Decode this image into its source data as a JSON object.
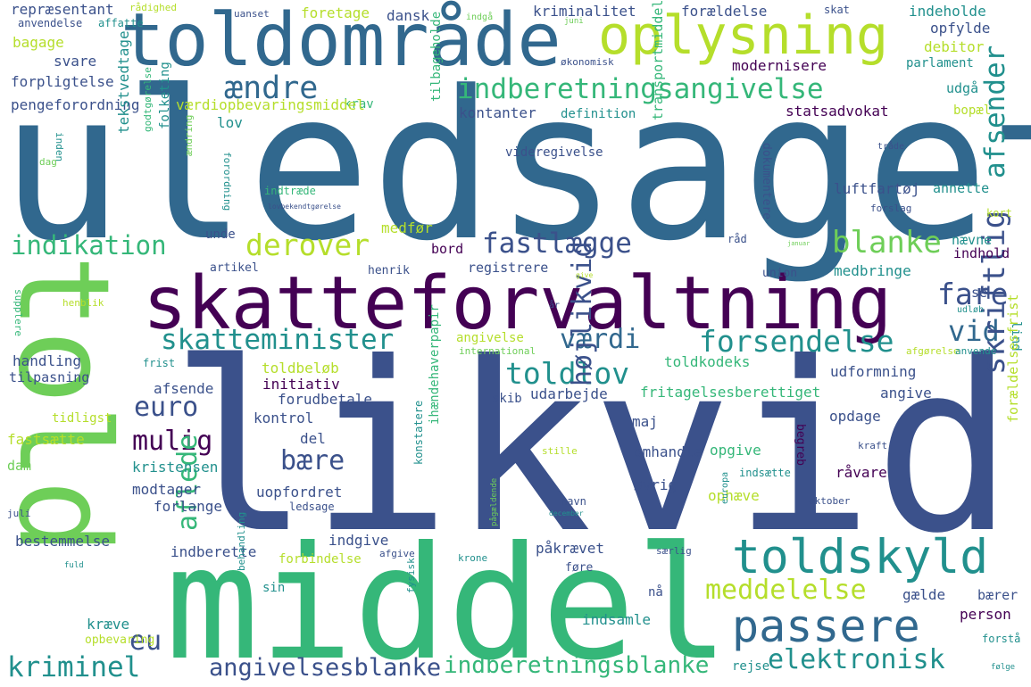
{
  "colors": {
    "background": "#ffffff",
    "dark_purple": "#440154",
    "indigo": "#3b518b",
    "blue": "#31688e",
    "teal": "#21908d",
    "green": "#35b779",
    "light_green": "#6ece58",
    "lime": "#b5de2b"
  },
  "words": [
    {
      "text": "uledsaget",
      "color": "#31688e"
    },
    {
      "text": "likvid",
      "color": "#3b518b"
    },
    {
      "text": "middel",
      "color": "#35b779"
    },
    {
      "text": "told",
      "color": "#6ece58"
    },
    {
      "text": "skatteforvaltning",
      "color": "#440154"
    },
    {
      "text": "toldområde",
      "color": "#31688e"
    },
    {
      "text": "oplysning",
      "color": "#b5de2b"
    },
    {
      "text": "indberetningsangivelse",
      "color": "#35b779"
    },
    {
      "text": "toldskyld",
      "color": "#21908d"
    },
    {
      "text": "passere",
      "color": "#31688e"
    },
    {
      "text": "ændre",
      "color": "#31688e"
    },
    {
      "text": "indikation",
      "color": "#35b779"
    },
    {
      "text": "derover",
      "color": "#b5de2b"
    },
    {
      "text": "fastlægge",
      "color": "#3b518b"
    },
    {
      "text": "blanke",
      "color": "#6ece58"
    },
    {
      "text": "fare",
      "color": "#3b518b"
    },
    {
      "text": "vid",
      "color": "#31688e"
    },
    {
      "text": "værdi",
      "color": "#31688e"
    },
    {
      "text": "forsendelse",
      "color": "#21908d"
    },
    {
      "text": "skatteminister",
      "color": "#21908d"
    },
    {
      "text": "toldlov",
      "color": "#21908d"
    },
    {
      "text": "euro",
      "color": "#3b518b"
    },
    {
      "text": "mulig",
      "color": "#440154"
    },
    {
      "text": "bære",
      "color": "#3b518b"
    },
    {
      "text": "højlikvid",
      "color": "#3b518b"
    },
    {
      "text": "afsender",
      "color": "#21908d"
    },
    {
      "text": "skriftlig",
      "color": "#3b518b"
    },
    {
      "text": "meddelelse",
      "color": "#b5de2b"
    },
    {
      "text": "elektronisk",
      "color": "#21908d"
    },
    {
      "text": "indberetningsblanke",
      "color": "#35b779"
    },
    {
      "text": "angivelsesblanke",
      "color": "#3b518b"
    },
    {
      "text": "kriminel",
      "color": "#21908d"
    },
    {
      "text": "eu",
      "color": "#3b518b"
    },
    {
      "text": "aflede",
      "color": "#35b779"
    },
    {
      "text": "repræsentant",
      "color": "#3b518b"
    },
    {
      "text": "rådighed",
      "color": "#b5de2b"
    },
    {
      "text": "uanset",
      "color": "#3b518b"
    },
    {
      "text": "foretage",
      "color": "#b5de2b"
    },
    {
      "text": "dansk",
      "color": "#3b518b"
    },
    {
      "text": "indgå",
      "color": "#6ece58"
    },
    {
      "text": "kriminalitet",
      "color": "#3b518b"
    },
    {
      "text": "forældelse",
      "color": "#3b518b"
    },
    {
      "text": "skat",
      "color": "#3b518b"
    },
    {
      "text": "indeholde",
      "color": "#21908d"
    },
    {
      "text": "opfylde",
      "color": "#3b518b"
    },
    {
      "text": "anvendelse",
      "color": "#3b518b"
    },
    {
      "text": "affatte",
      "color": "#21908d"
    },
    {
      "text": "juni",
      "color": "#6ece58"
    },
    {
      "text": "bagage",
      "color": "#b5de2b"
    },
    {
      "text": "debitor",
      "color": "#b5de2b"
    },
    {
      "text": "svare",
      "color": "#3b518b"
    },
    {
      "text": "økonomisk",
      "color": "#3b518b"
    },
    {
      "text": "parlament",
      "color": "#21908d"
    },
    {
      "text": "modernisere",
      "color": "#440154"
    },
    {
      "text": "forpligtelse",
      "color": "#3b518b"
    },
    {
      "text": "krav",
      "color": "#35b779"
    },
    {
      "text": "udgå",
      "color": "#21908d"
    },
    {
      "text": "pengeforordning",
      "color": "#3b518b"
    },
    {
      "text": "værdiopbevaringsmiddel",
      "color": "#b5de2b"
    },
    {
      "text": "kontanter",
      "color": "#3b518b"
    },
    {
      "text": "definition",
      "color": "#21908d"
    },
    {
      "text": "statsadvokat",
      "color": "#440154"
    },
    {
      "text": "bopæl",
      "color": "#b5de2b"
    },
    {
      "text": "lov",
      "color": "#21908d"
    },
    {
      "text": "tilbageholde",
      "color": "#35b779"
    },
    {
      "text": "transportmiddel",
      "color": "#35b779"
    },
    {
      "text": "videregivelse",
      "color": "#3b518b"
    },
    {
      "text": "dokumentere",
      "color": "#3b518b"
    },
    {
      "text": "tråde",
      "color": "#3b518b"
    },
    {
      "text": "dag",
      "color": "#6ece58"
    },
    {
      "text": "inden",
      "color": "#21908d"
    },
    {
      "text": "godtgørelse",
      "color": "#35b779"
    },
    {
      "text": "folketing",
      "color": "#21908d"
    },
    {
      "text": "ændring",
      "color": "#6ece58"
    },
    {
      "text": "forordning",
      "color": "#21908d"
    },
    {
      "text": "tekstvedtage",
      "color": "#21908d"
    },
    {
      "text": "indtræde",
      "color": "#35b779"
    },
    {
      "text": "luftfartøj",
      "color": "#3b518b"
    },
    {
      "text": "annette",
      "color": "#21908d"
    },
    {
      "text": "lovbekendtgørelse",
      "color": "#3b518b"
    },
    {
      "text": "forslag",
      "color": "#3b518b"
    },
    {
      "text": "kort",
      "color": "#b5de2b"
    },
    {
      "text": "unde",
      "color": "#3b518b"
    },
    {
      "text": "medfør",
      "color": "#b5de2b"
    },
    {
      "text": "råd",
      "color": "#3b518b"
    },
    {
      "text": "nævne",
      "color": "#21908d"
    },
    {
      "text": "januar",
      "color": "#6ece58"
    },
    {
      "text": "indhold",
      "color": "#440154"
    },
    {
      "text": "bord",
      "color": "#440154"
    },
    {
      "text": "registrere",
      "color": "#3b518b"
    },
    {
      "text": "artikel",
      "color": "#3b518b"
    },
    {
      "text": "henrik",
      "color": "#3b518b"
    },
    {
      "text": "give",
      "color": "#b5de2b"
    },
    {
      "text": "union",
      "color": "#3b518b"
    },
    {
      "text": "medbringe",
      "color": "#21908d"
    },
    {
      "text": "se",
      "color": "#3b518b"
    },
    {
      "text": "henblik",
      "color": "#b5de2b"
    },
    {
      "text": "supplere",
      "color": "#35b779"
    },
    {
      "text": "år",
      "color": "#3b518b"
    },
    {
      "text": "udløb",
      "color": "#21908d"
    },
    {
      "text": "lind",
      "color": "#21908d"
    },
    {
      "text": "angivelse",
      "color": "#b5de2b"
    },
    {
      "text": "international",
      "color": "#6ece58"
    },
    {
      "text": "afgørelse",
      "color": "#b5de2b"
    },
    {
      "text": "anvende",
      "color": "#21908d"
    },
    {
      "text": "handling",
      "color": "#3b518b"
    },
    {
      "text": "frist",
      "color": "#21908d"
    },
    {
      "text": "tilpasning",
      "color": "#3b518b"
    },
    {
      "text": "toldbeløb",
      "color": "#b5de2b"
    },
    {
      "text": "initiativ",
      "color": "#440154"
    },
    {
      "text": "toldkodeks",
      "color": "#35b779"
    },
    {
      "text": "udformning",
      "color": "#3b518b"
    },
    {
      "text": "afsende",
      "color": "#3b518b"
    },
    {
      "text": "forudbetale",
      "color": "#3b518b"
    },
    {
      "text": "udarbejde",
      "color": "#3b518b"
    },
    {
      "text": "fritagelsesberettiget",
      "color": "#35b779"
    },
    {
      "text": "angive",
      "color": "#3b518b"
    },
    {
      "text": "skib",
      "color": "#3b518b"
    },
    {
      "text": "tidligst",
      "color": "#b5de2b"
    },
    {
      "text": "kontrol",
      "color": "#3b518b"
    },
    {
      "text": "opdage",
      "color": "#3b518b"
    },
    {
      "text": "maj",
      "color": "#3b518b"
    },
    {
      "text": "fastsætte",
      "color": "#b5de2b"
    },
    {
      "text": "del",
      "color": "#3b518b"
    },
    {
      "text": "forældelsesfrist",
      "color": "#b5de2b"
    },
    {
      "text": "kraft",
      "color": "#3b518b"
    },
    {
      "text": "stille",
      "color": "#b5de2b"
    },
    {
      "text": "opgive",
      "color": "#35b779"
    },
    {
      "text": "omhandle",
      "color": "#3b518b"
    },
    {
      "text": "begreb",
      "color": "#440154"
    },
    {
      "text": "dam",
      "color": "#6ece58"
    },
    {
      "text": "kristensen",
      "color": "#21908d"
    },
    {
      "text": "ihændehaverpapir",
      "color": "#35b779"
    },
    {
      "text": "indsætte",
      "color": "#21908d"
    },
    {
      "text": "råvare",
      "color": "#440154"
    },
    {
      "text": "modtager",
      "color": "#3b518b"
    },
    {
      "text": "uopfordret",
      "color": "#3b518b"
    },
    {
      "text": "øvrig",
      "color": "#3b518b"
    },
    {
      "text": "konstatere",
      "color": "#21908d"
    },
    {
      "text": "forlange",
      "color": "#3b518b"
    },
    {
      "text": "ledsage",
      "color": "#3b518b"
    },
    {
      "text": "ophæve",
      "color": "#b5de2b"
    },
    {
      "text": "navn",
      "color": "#3b518b"
    },
    {
      "text": "oktober",
      "color": "#3b518b"
    },
    {
      "text": "juli",
      "color": "#3b518b"
    },
    {
      "text": "december",
      "color": "#21908d"
    },
    {
      "text": "europa",
      "color": "#21908d"
    },
    {
      "text": "bestemmelse",
      "color": "#3b518b"
    },
    {
      "text": "indgive",
      "color": "#3b518b"
    },
    {
      "text": "indberette",
      "color": "#3b518b"
    },
    {
      "text": "påkrævet",
      "color": "#3b518b"
    },
    {
      "text": "pågældende",
      "color": "#6ece58"
    },
    {
      "text": "særlig",
      "color": "#3b518b"
    },
    {
      "text": "forbindelse",
      "color": "#b5de2b"
    },
    {
      "text": "afgive",
      "color": "#3b518b"
    },
    {
      "text": "krone",
      "color": "#21908d"
    },
    {
      "text": "føre",
      "color": "#3b518b"
    },
    {
      "text": "fuld",
      "color": "#21908d"
    },
    {
      "text": "sin",
      "color": "#21908d"
    },
    {
      "text": "behandling",
      "color": "#21908d"
    },
    {
      "text": "fysisk",
      "color": "#21908d"
    },
    {
      "text": "nå",
      "color": "#3b518b"
    },
    {
      "text": "gælde",
      "color": "#3b518b"
    },
    {
      "text": "bærer",
      "color": "#3b518b"
    },
    {
      "text": "kræve",
      "color": "#21908d"
    },
    {
      "text": "indsamle",
      "color": "#21908d"
    },
    {
      "text": "person",
      "color": "#440154"
    },
    {
      "text": "opbevaring",
      "color": "#b5de2b"
    },
    {
      "text": "forstå",
      "color": "#21908d"
    },
    {
      "text": "rejse",
      "color": "#21908d"
    },
    {
      "text": "følge",
      "color": "#21908d"
    }
  ]
}
